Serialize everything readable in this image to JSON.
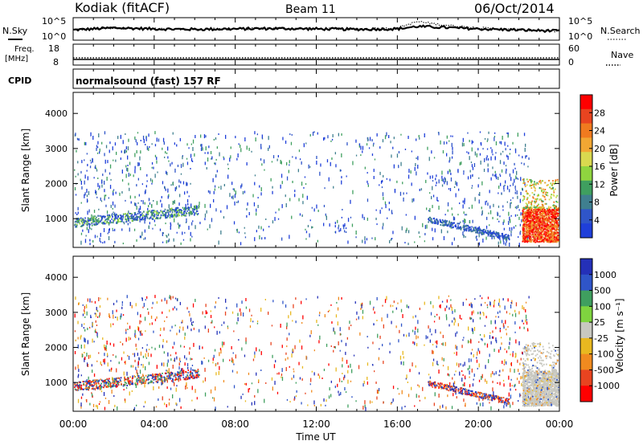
{
  "header": {
    "radar": "Kodiak (fitACF)",
    "beam": "Beam 11",
    "date": "06/Oct/2014"
  },
  "left_labels": {
    "nsky": "N.Sky",
    "freq_top": "Freq.",
    "freq_unit": "[MHz]",
    "cpid": "CPID"
  },
  "right_labels": {
    "nsearch": "N.Search",
    "nave": "Nave"
  },
  "cpid_text": "normalsound (fast) 157 RF",
  "x_axis": {
    "title": "Time UT",
    "ticks": [
      "00:00",
      "04:00",
      "08:00",
      "12:00",
      "16:00",
      "20:00",
      "00:00"
    ]
  },
  "colors": {
    "power": [
      "#1f3fd9",
      "#2f55c8",
      "#3f7f8f",
      "#3f9f5f",
      "#8fd43f",
      "#d9d94f",
      "#f2a733",
      "#f07a1f",
      "#e84420",
      "#ff0000"
    ],
    "velocity": [
      "#2430b8",
      "#2f55c8",
      "#3f9f5f",
      "#7fd43f",
      "#c8c8c0",
      "#e8b820",
      "#f08a1f",
      "#e84420",
      "#ff0000"
    ],
    "trace": "#000000"
  },
  "chart_data": [
    {
      "type": "line",
      "name": "noise-panel",
      "left_label": "N.Sky",
      "right_label": "N.Search",
      "y_ticks_left": [
        "10^5",
        "10^0"
      ],
      "y_ticks_right": [
        "10^5",
        "10^0"
      ],
      "x_hours": [
        0,
        2,
        4,
        6,
        8,
        10,
        12,
        14,
        16,
        17,
        18,
        20,
        22,
        24
      ],
      "nsky_level": [
        0.45,
        0.55,
        0.5,
        0.48,
        0.5,
        0.52,
        0.5,
        0.48,
        0.5,
        0.62,
        0.58,
        0.5,
        0.45,
        0.4
      ],
      "nsearch_level": [
        0.45,
        0.55,
        0.5,
        0.48,
        0.5,
        0.52,
        0.5,
        0.48,
        0.55,
        0.85,
        0.72,
        0.55,
        0.45,
        0.4
      ]
    },
    {
      "type": "line",
      "name": "freq-nave-panel",
      "left_label": "Freq. [MHz]",
      "right_label": "Nave",
      "y_ticks_left": [
        "18",
        "8"
      ],
      "y_ticks_right": [
        "60",
        "0"
      ],
      "freq_mhz": 10.5,
      "nave": 20
    },
    {
      "type": "heatmap",
      "name": "power",
      "ylabel": "Slant Range [km]",
      "colorbar_label": "Power [dB]",
      "colorbar_ticks": [
        "28",
        "24",
        "20",
        "16",
        "12",
        "8",
        "4"
      ],
      "y_ticks": [
        "1000",
        "2000",
        "3000",
        "4000"
      ],
      "ylim": [
        180,
        4600
      ],
      "xlim": [
        0,
        24
      ]
    },
    {
      "type": "heatmap",
      "name": "velocity",
      "ylabel": "Slant Range [km]",
      "colorbar_label": "Velocity [m s⁻¹]",
      "colorbar_ticks": [
        "1000",
        "500",
        "100",
        "25",
        "-25",
        "-100",
        "-500",
        "-1000"
      ],
      "y_ticks": [
        "1000",
        "2000",
        "3000",
        "4000"
      ],
      "ylim": [
        180,
        4600
      ],
      "xlim": [
        0,
        24
      ]
    }
  ]
}
